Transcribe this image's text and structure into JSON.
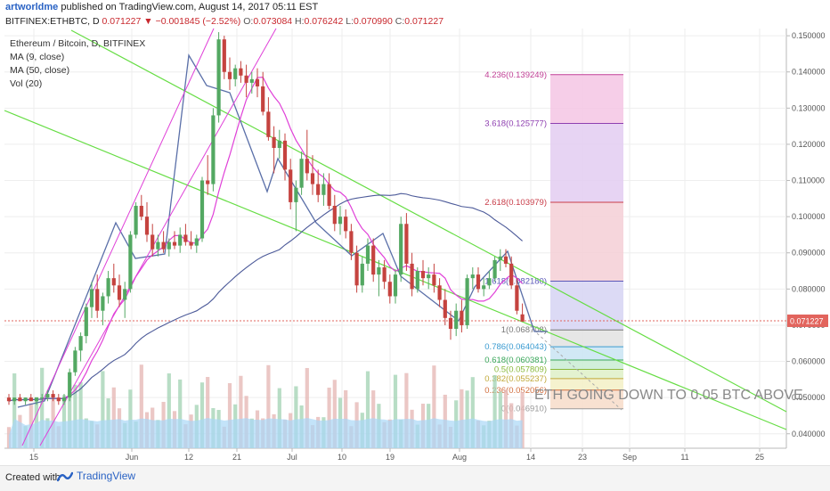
{
  "header": {
    "author": "artworldme",
    "published": "published on TradingView.com, August 14, 2017 05:11 EST",
    "symbol": "BITFINEX:ETHBTC, D",
    "last": "0.071227",
    "change": "−0.001845 (−2.52%)",
    "o_label": "O:",
    "o": "0.073084",
    "h_label": "H:",
    "h": "0.076242",
    "l_label": "L:",
    "l": "0.070990",
    "c_label": "C:",
    "c": "0.071227"
  },
  "legend": {
    "title": "Ethereum / Bitcoin, D, BITFINEX",
    "ma9": "MA (9, close)",
    "ma50": "MA (50, close)",
    "vol": "Vol (20)"
  },
  "footer": {
    "created": "Created with",
    "brand": "TradingView"
  },
  "colors": {
    "up": "#53a862",
    "down": "#c5433f",
    "ma9": "#e040d8",
    "ma50": "#4c5a99",
    "trend": "#66dd44",
    "pattern": "#5a6fa8",
    "price_line": "#e2645d",
    "vol_up": "#a6d5b6",
    "vol_down": "#e6b9b6",
    "vol_ma": "#a9d7f7"
  },
  "chart_data": {
    "type": "candlestick",
    "x_ticks": [
      "15",
      "Jun",
      "12",
      "21",
      "Jul",
      "10",
      "19",
      "Aug",
      "14",
      "23",
      "Sep",
      "11",
      "25"
    ],
    "y_ticks": [
      "0.150000",
      "0.140000",
      "0.130000",
      "0.120000",
      "0.110000",
      "0.100000",
      "0.090000",
      "0.080000",
      "0.070000",
      "0.060000",
      "0.050000",
      "0.040000"
    ],
    "ylim": [
      0.036,
      0.152
    ],
    "current_price": "0.071227",
    "candles": [
      [
        0.05,
        0.051,
        0.048,
        0.049
      ],
      [
        0.049,
        0.05,
        0.048,
        0.05
      ],
      [
        0.05,
        0.051,
        0.049,
        0.049
      ],
      [
        0.049,
        0.05,
        0.048,
        0.05
      ],
      [
        0.05,
        0.051,
        0.049,
        0.049
      ],
      [
        0.049,
        0.05,
        0.048,
        0.05
      ],
      [
        0.05,
        0.051,
        0.049,
        0.05
      ],
      [
        0.05,
        0.052,
        0.049,
        0.051
      ],
      [
        0.051,
        0.052,
        0.049,
        0.05
      ],
      [
        0.05,
        0.051,
        0.048,
        0.049
      ],
      [
        0.049,
        0.051,
        0.048,
        0.05
      ],
      [
        0.05,
        0.058,
        0.049,
        0.057
      ],
      [
        0.057,
        0.064,
        0.056,
        0.063
      ],
      [
        0.063,
        0.068,
        0.06,
        0.067
      ],
      [
        0.067,
        0.076,
        0.065,
        0.075
      ],
      [
        0.075,
        0.082,
        0.072,
        0.08
      ],
      [
        0.08,
        0.084,
        0.072,
        0.074
      ],
      [
        0.074,
        0.079,
        0.07,
        0.078
      ],
      [
        0.078,
        0.085,
        0.076,
        0.083
      ],
      [
        0.083,
        0.087,
        0.079,
        0.081
      ],
      [
        0.081,
        0.084,
        0.075,
        0.077
      ],
      [
        0.077,
        0.082,
        0.072,
        0.08
      ],
      [
        0.08,
        0.096,
        0.079,
        0.095
      ],
      [
        0.095,
        0.104,
        0.094,
        0.103
      ],
      [
        0.103,
        0.106,
        0.099,
        0.1
      ],
      [
        0.1,
        0.104,
        0.093,
        0.095
      ],
      [
        0.095,
        0.098,
        0.089,
        0.091
      ],
      [
        0.091,
        0.095,
        0.089,
        0.093
      ],
      [
        0.093,
        0.096,
        0.09,
        0.091
      ],
      [
        0.091,
        0.094,
        0.089,
        0.093
      ],
      [
        0.093,
        0.096,
        0.091,
        0.092
      ],
      [
        0.092,
        0.097,
        0.09,
        0.095
      ],
      [
        0.095,
        0.098,
        0.092,
        0.093
      ],
      [
        0.093,
        0.096,
        0.091,
        0.092
      ],
      [
        0.092,
        0.095,
        0.09,
        0.094
      ],
      [
        0.094,
        0.111,
        0.093,
        0.11
      ],
      [
        0.11,
        0.117,
        0.106,
        0.109
      ],
      [
        0.109,
        0.13,
        0.107,
        0.128
      ],
      [
        0.128,
        0.151,
        0.126,
        0.149
      ],
      [
        0.149,
        0.15,
        0.138,
        0.14
      ],
      [
        0.14,
        0.144,
        0.135,
        0.138
      ],
      [
        0.138,
        0.142,
        0.136,
        0.141
      ],
      [
        0.141,
        0.143,
        0.137,
        0.139
      ],
      [
        0.139,
        0.142,
        0.133,
        0.137
      ],
      [
        0.137,
        0.14,
        0.134,
        0.138
      ],
      [
        0.138,
        0.141,
        0.133,
        0.136
      ],
      [
        0.136,
        0.14,
        0.128,
        0.129
      ],
      [
        0.129,
        0.133,
        0.121,
        0.122
      ],
      [
        0.122,
        0.125,
        0.112,
        0.119
      ],
      [
        0.119,
        0.124,
        0.116,
        0.121
      ],
      [
        0.121,
        0.123,
        0.11,
        0.113
      ],
      [
        0.113,
        0.116,
        0.102,
        0.104
      ],
      [
        0.104,
        0.11,
        0.096,
        0.108
      ],
      [
        0.108,
        0.118,
        0.106,
        0.116
      ],
      [
        0.116,
        0.124,
        0.11,
        0.112
      ],
      [
        0.112,
        0.117,
        0.106,
        0.109
      ],
      [
        0.109,
        0.113,
        0.104,
        0.106
      ],
      [
        0.106,
        0.112,
        0.103,
        0.109
      ],
      [
        0.109,
        0.112,
        0.102,
        0.103
      ],
      [
        0.103,
        0.106,
        0.096,
        0.098
      ],
      [
        0.098,
        0.103,
        0.095,
        0.1
      ],
      [
        0.1,
        0.102,
        0.094,
        0.096
      ],
      [
        0.096,
        0.098,
        0.088,
        0.09
      ],
      [
        0.09,
        0.092,
        0.079,
        0.081
      ],
      [
        0.081,
        0.089,
        0.079,
        0.087
      ],
      [
        0.087,
        0.094,
        0.085,
        0.092
      ],
      [
        0.092,
        0.094,
        0.082,
        0.084
      ],
      [
        0.084,
        0.088,
        0.078,
        0.086
      ],
      [
        0.086,
        0.088,
        0.08,
        0.082
      ],
      [
        0.082,
        0.084,
        0.076,
        0.078
      ],
      [
        0.078,
        0.085,
        0.076,
        0.084
      ],
      [
        0.084,
        0.1,
        0.082,
        0.098
      ],
      [
        0.098,
        0.101,
        0.085,
        0.087
      ],
      [
        0.087,
        0.09,
        0.078,
        0.08
      ],
      [
        0.08,
        0.086,
        0.079,
        0.085
      ],
      [
        0.085,
        0.088,
        0.081,
        0.083
      ],
      [
        0.083,
        0.086,
        0.08,
        0.084
      ],
      [
        0.084,
        0.087,
        0.079,
        0.081
      ],
      [
        0.081,
        0.083,
        0.075,
        0.077
      ],
      [
        0.077,
        0.08,
        0.07,
        0.072
      ],
      [
        0.072,
        0.074,
        0.066,
        0.069
      ],
      [
        0.069,
        0.076,
        0.067,
        0.074
      ],
      [
        0.074,
        0.077,
        0.068,
        0.07
      ],
      [
        0.07,
        0.084,
        0.069,
        0.083
      ],
      [
        0.083,
        0.086,
        0.08,
        0.084
      ],
      [
        0.084,
        0.086,
        0.079,
        0.08
      ],
      [
        0.08,
        0.083,
        0.078,
        0.081
      ],
      [
        0.081,
        0.085,
        0.08,
        0.083
      ],
      [
        0.083,
        0.089,
        0.082,
        0.088
      ],
      [
        0.088,
        0.091,
        0.085,
        0.089
      ],
      [
        0.089,
        0.091,
        0.086,
        0.087
      ],
      [
        0.087,
        0.089,
        0.08,
        0.081
      ],
      [
        0.081,
        0.083,
        0.073,
        0.074
      ],
      [
        0.073,
        0.076,
        0.071,
        0.071
      ]
    ],
    "fib": {
      "levels": [
        {
          "label": "4.236(0.139249)",
          "value": 0.139249
        },
        {
          "label": "3.618(0.125777)",
          "value": 0.125777
        },
        {
          "label": "2.618(0.103979)",
          "value": 0.103979
        },
        {
          "label": "1.618(0.082180)",
          "value": 0.08218
        },
        {
          "label": "1(0.068708)",
          "value": 0.068708
        },
        {
          "label": "0.786(0.064043)",
          "value": 0.064043
        },
        {
          "label": "0.618(0.060381)",
          "value": 0.060381
        },
        {
          "label": "0.5(0.057809)",
          "value": 0.057809
        },
        {
          "label": "0.382(0.055237)",
          "value": 0.055237
        },
        {
          "label": "0.236(0.052056)",
          "value": 0.052056
        },
        {
          "label": "0(0.046910)",
          "value": 0.04691
        }
      ]
    },
    "annotation": "ETH GOING DOWN TO 0.05 BTC ABOVE"
  }
}
